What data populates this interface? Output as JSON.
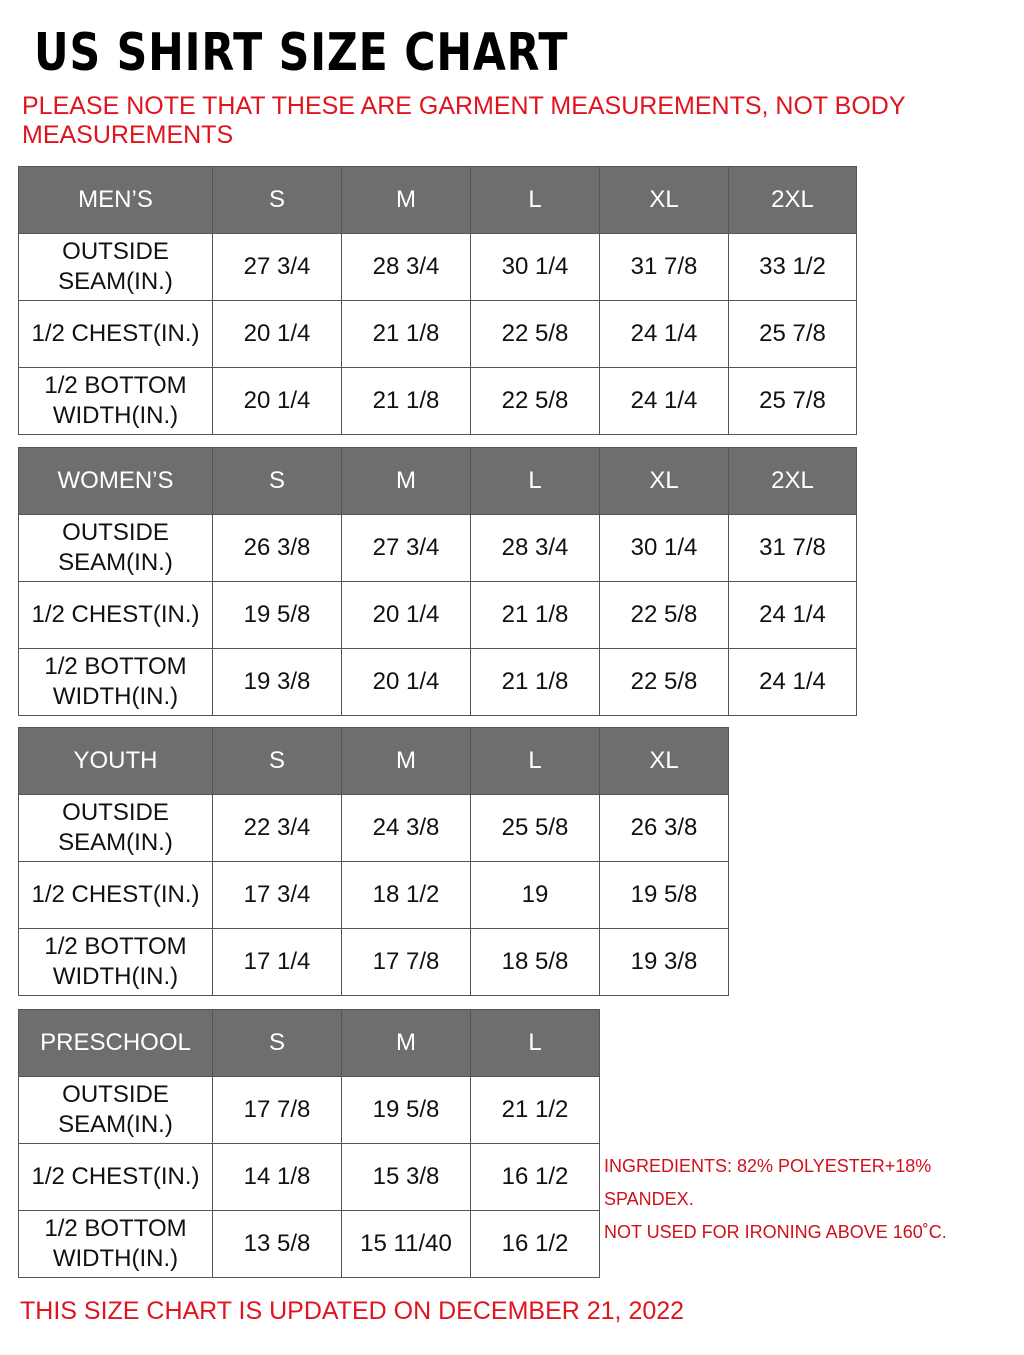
{
  "title": "US SHIRT SIZE CHART",
  "note": "PLEASE NOTE THAT THESE ARE GARMENT MEASUREMENTS, NOT BODY MEASUREMENTS",
  "tables": [
    {
      "category": "MEN’S",
      "sizes": [
        "S",
        "M",
        "L",
        "XL",
        "2XL"
      ],
      "rows": [
        {
          "label": "OUTSIDE\nSEAM(IN.)",
          "values": [
            "27 3/4",
            "28 3/4",
            "30 1/4",
            "31 7/8",
            "33 1/2"
          ]
        },
        {
          "label": "1/2 CHEST(IN.)",
          "values": [
            "20 1/4",
            "21 1/8",
            "22 5/8",
            "24 1/4",
            "25 7/8"
          ]
        },
        {
          "label": "1/2 BOTTOM\nWIDTH(IN.)",
          "values": [
            "20 1/4",
            "21 1/8",
            "22 5/8",
            "24 1/4",
            "25 7/8"
          ]
        }
      ]
    },
    {
      "category": "WOMEN’S",
      "sizes": [
        "S",
        "M",
        "L",
        "XL",
        "2XL"
      ],
      "rows": [
        {
          "label": "OUTSIDE\nSEAM(IN.)",
          "values": [
            "26 3/8",
            "27 3/4",
            "28 3/4",
            "30 1/4",
            "31 7/8"
          ]
        },
        {
          "label": "1/2 CHEST(IN.)",
          "values": [
            "19 5/8",
            "20 1/4",
            "21 1/8",
            "22 5/8",
            "24 1/4"
          ]
        },
        {
          "label": "1/2 BOTTOM\nWIDTH(IN.)",
          "values": [
            "19 3/8",
            "20 1/4",
            "21 1/8",
            "22 5/8",
            "24 1/4"
          ]
        }
      ]
    },
    {
      "category": "YOUTH",
      "sizes": [
        "S",
        "M",
        "L",
        "XL"
      ],
      "rows": [
        {
          "label": "OUTSIDE\nSEAM(IN.)",
          "values": [
            "22 3/4",
            "24 3/8",
            "25 5/8",
            "26 3/8"
          ]
        },
        {
          "label": "1/2 CHEST(IN.)",
          "values": [
            "17 3/4",
            "18 1/2",
            "19",
            "19 5/8"
          ]
        },
        {
          "label": "1/2 BOTTOM\nWIDTH(IN.)",
          "values": [
            "17 1/4",
            "17 7/8",
            "18 5/8",
            "19 3/8"
          ]
        }
      ]
    },
    {
      "category": "PRESCHOOL",
      "sizes": [
        "S",
        "M",
        "L"
      ],
      "rows": [
        {
          "label": "OUTSIDE\nSEAM(IN.)",
          "values": [
            "17 7/8",
            "19 5/8",
            "21 1/2"
          ]
        },
        {
          "label": "1/2 CHEST(IN.)",
          "values": [
            "14 1/8",
            "15 3/8",
            "16 1/2"
          ]
        },
        {
          "label": "1/2 BOTTOM\nWIDTH(IN.)",
          "values": [
            "13 5/8",
            "15 11/40",
            "16 1/2"
          ]
        }
      ]
    }
  ],
  "ingredients": [
    "INGREDIENTS: 82% POLYESTER+18% SPANDEX.",
    "NOT USED FOR IRONING ABOVE 160˚C."
  ],
  "updated": "THIS SIZE CHART IS UPDATED ON DECEMBER 21, 2022",
  "colors": {
    "header_bg": "#6e6e6e",
    "note_red": "#e0141e"
  }
}
